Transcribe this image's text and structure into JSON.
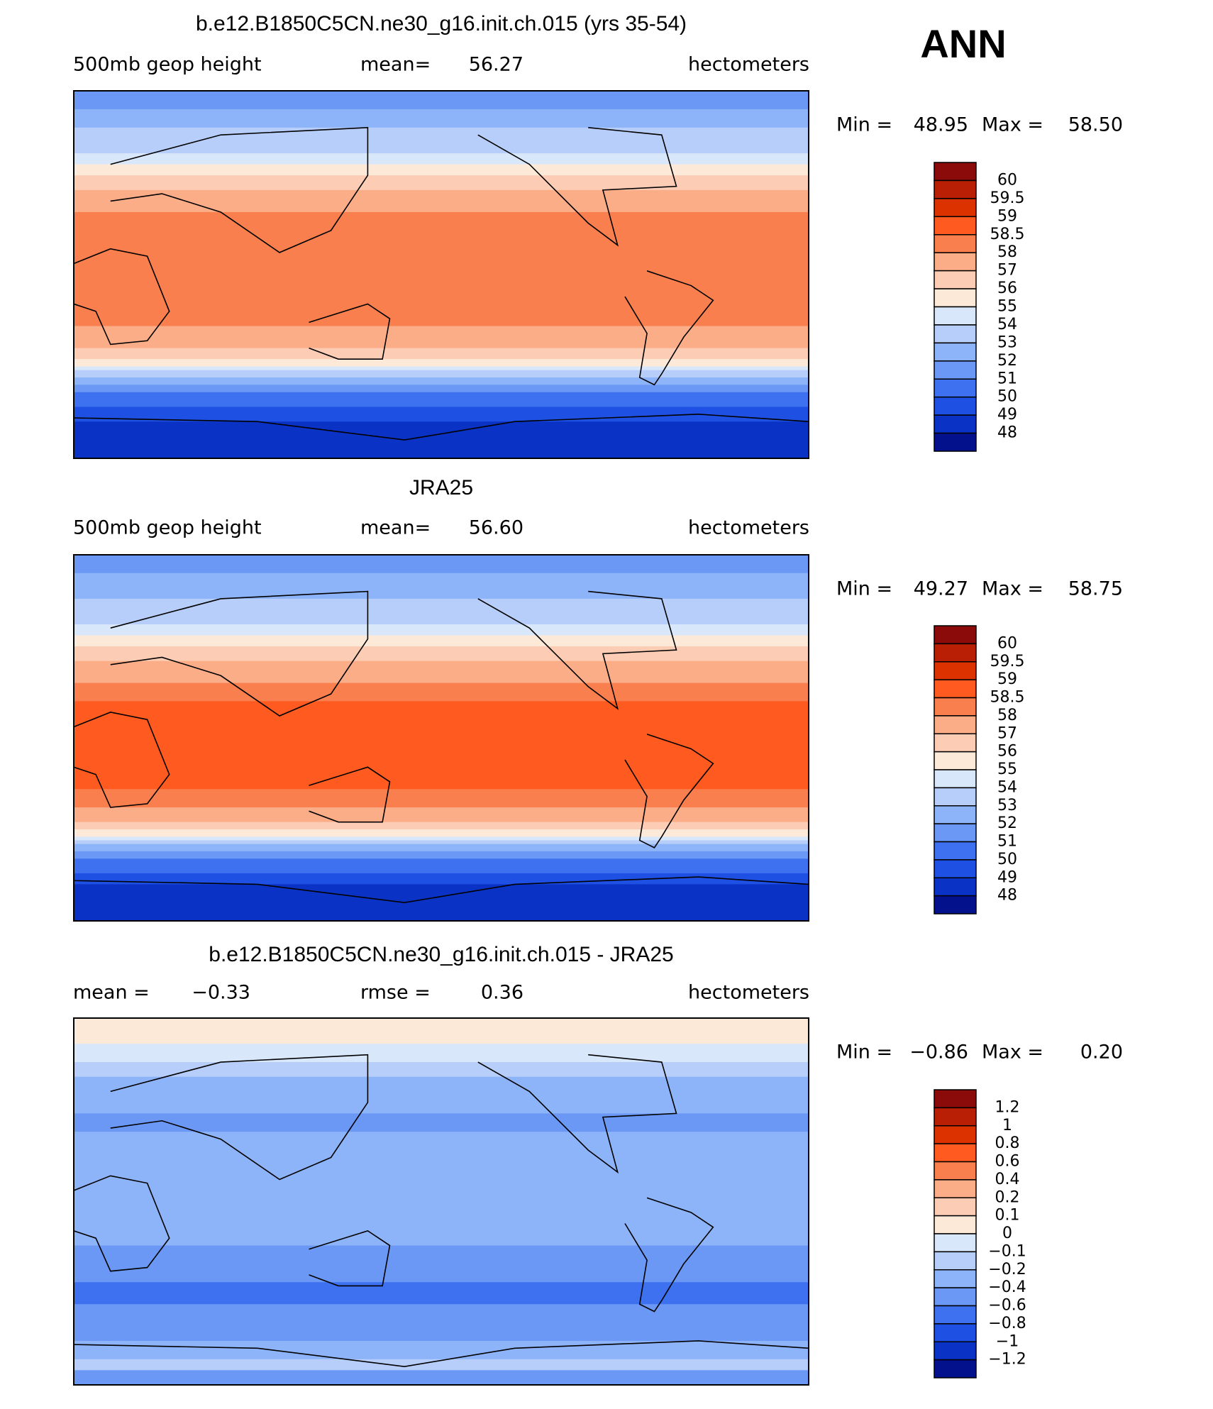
{
  "header": {
    "season": "ANN"
  },
  "colormap": [
    "#8b0a0a",
    "#b81f05",
    "#dc3200",
    "#ff5a1f",
    "#f97f4e",
    "#fbad88",
    "#fccdb4",
    "#fde9d8",
    "#d9e7fb",
    "#b6cef9",
    "#8db3f8",
    "#6b98f4",
    "#3e71ef",
    "#1e50e4",
    "#0a32c4",
    "#03118c"
  ],
  "panels": [
    {
      "title": "b.e12.B1850C5CN.ne30_g16.init.ch.015 (yrs 35-54)",
      "left": "500mb geop height",
      "center_label": "mean=",
      "center_value": "56.27",
      "units": "hectometers",
      "min_label": "Min =",
      "min": "48.95",
      "max_label": "Max =",
      "max": "58.50",
      "colorbar": [
        "60",
        "59.5",
        "59",
        "58.5",
        "58",
        "57",
        "56",
        "55",
        "54",
        "53",
        "52",
        "51",
        "50",
        "49",
        "48"
      ]
    },
    {
      "title": "JRA25",
      "left": "500mb geop height",
      "center_label": "mean=",
      "center_value": "56.60",
      "units": "hectometers",
      "min_label": "Min =",
      "min": "49.27",
      "max_label": "Max =",
      "max": "58.75",
      "colorbar": [
        "60",
        "59.5",
        "59",
        "58.5",
        "58",
        "57",
        "56",
        "55",
        "54",
        "53",
        "52",
        "51",
        "50",
        "49",
        "48"
      ]
    },
    {
      "title": "b.e12.B1850C5CN.ne30_g16.init.ch.015 - JRA25",
      "left": "mean =",
      "left_value": "−0.33",
      "center_label": "rmse =",
      "center_value": "0.36",
      "units": "hectometers",
      "min_label": "Min =",
      "min": "−0.86",
      "max_label": "Max =",
      "max": "0.20",
      "colorbar": [
        "1.2",
        "1",
        "0.8",
        "0.6",
        "0.4",
        "0.2",
        "0.1",
        "0",
        "−0.1",
        "−0.2",
        "−0.4",
        "−0.6",
        "−0.8",
        "−1",
        "−1.2"
      ]
    }
  ]
}
